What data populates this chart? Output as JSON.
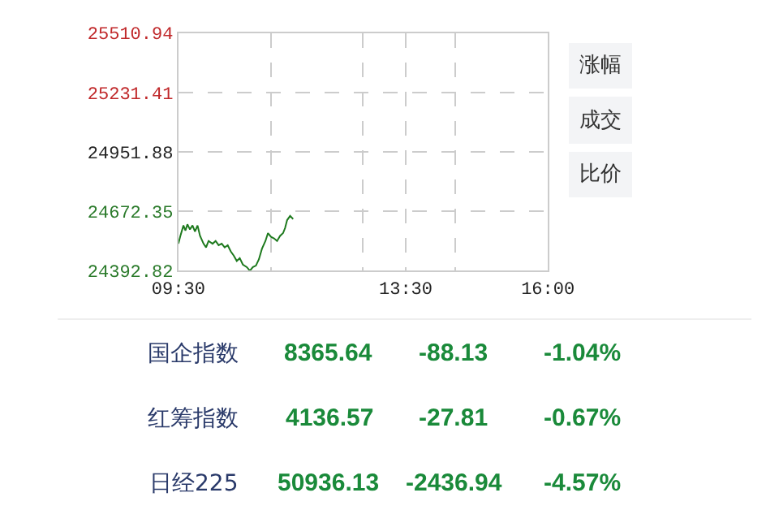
{
  "chart_data": [
    {
      "type": "line",
      "x": [
        9.5,
        9.535,
        9.589,
        9.624,
        9.659,
        9.704,
        9.748,
        9.792,
        9.837,
        9.881,
        9.943,
        9.987,
        10.031,
        10.102,
        10.155,
        10.208,
        10.262,
        10.315,
        10.368,
        10.421,
        10.474,
        10.527,
        10.58,
        10.634,
        10.704,
        10.758,
        10.811,
        10.864,
        10.917,
        10.97,
        11.032,
        11.076,
        11.13,
        11.183,
        11.236,
        11.289,
        11.342,
        11.377,
        11.413,
        11.466,
        11.519
      ],
      "series": [
        {
          "color": "#1e7a1e",
          "values": [
            24520,
            24557,
            24606,
            24582,
            24611,
            24587,
            24606,
            24577,
            24606,
            24557,
            24520,
            24503,
            24533,
            24520,
            24533,
            24513,
            24520,
            24503,
            24513,
            24484,
            24464,
            24439,
            24452,
            24422,
            24410,
            24393,
            24410,
            24417,
            24447,
            24496,
            24533,
            24570,
            24552,
            24545,
            24533,
            24557,
            24570,
            24594,
            24631,
            24651,
            24636
          ]
        }
      ],
      "xlim": [
        9.5,
        16
      ],
      "xticks": [
        {
          "value": 9.5,
          "label": "09:30"
        },
        {
          "value": 11.125,
          "label": null
        },
        {
          "value": 12.75,
          "label": null
        },
        {
          "value": 13.5,
          "label": "13:30"
        },
        {
          "value": 14.375,
          "label": null
        },
        {
          "value": 16,
          "label": "16:00"
        }
      ],
      "ylim": [
        24392.82,
        25510.94
      ],
      "yticks": [
        {
          "value": 24392.82,
          "label": "24392.82"
        },
        {
          "value": 24672.35,
          "label": "24672.35"
        },
        {
          "value": 24951.88,
          "label": "24951.88"
        },
        {
          "value": 25231.41,
          "label": "25231.41"
        },
        {
          "value": 25510.94,
          "label": "25510.94"
        }
      ],
      "grid": true,
      "marker": "none",
      "line_style": "solid",
      "annotations": [
        "涨幅",
        "成交",
        "比价"
      ]
    },
    {
      "type": "other",
      "categories": [
        "国企指数",
        "红筹指数",
        "日经225"
      ],
      "series": [
        {
          "color": "#1a8a3a",
          "values": [
            8365.64,
            4136.57,
            50936.13
          ],
          "value_labels": [
            "8365.64",
            "4136.57",
            "50936.13"
          ]
        },
        {
          "color": "#1a8a3a",
          "values": [
            -88.13,
            -27.81,
            -2436.94
          ],
          "value_labels": [
            "-88.13",
            "-27.81",
            "-2436.94"
          ]
        },
        {
          "color": "#1a8a3a",
          "values": [
            -1.04,
            -0.67,
            -4.57
          ],
          "value_labels": [
            "-1.04%",
            "-0.67%",
            "-4.57%"
          ]
        }
      ]
    }
  ]
}
